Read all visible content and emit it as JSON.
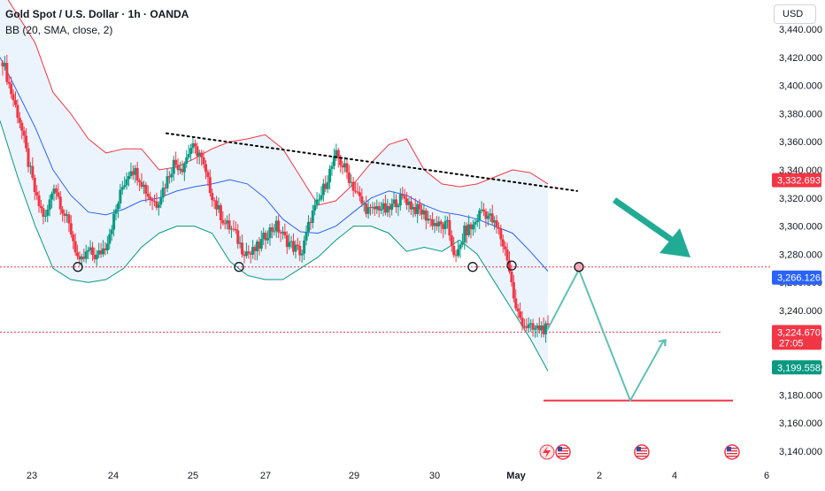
{
  "header": {
    "title": "Gold Spot / U.S. Dollar · 1h · OANDA",
    "indicator": "BB (20, SMA, close, 2)",
    "currency_button": "USD"
  },
  "colors": {
    "up": "#089981",
    "down": "#f23645",
    "bb_basis": "#2962ff",
    "bb_upper": "#f23645",
    "bb_lower": "#089981",
    "bb_fill": "#e3f0fb",
    "projection": "#5ec1b4",
    "arrow": "#22ab94",
    "support": "#f23645",
    "trendline": "#000000"
  },
  "price_badges": {
    "upper": "3,332.693",
    "level": "3,266.126",
    "last": "3,224.670",
    "countdown": "27:05",
    "lower": "3,199.558"
  },
  "chart_data": {
    "type": "candlestick",
    "title": "Gold Spot / U.S. Dollar · 1h · OANDA",
    "x_tick_labels": [
      "23",
      "24",
      "25",
      "27",
      "29",
      "30",
      "May",
      "2",
      "4",
      "6"
    ],
    "y_tick_labels": [
      "3,440.000",
      "3,420.000",
      "3,400.000",
      "3,380.000",
      "3,360.000",
      "3,340.000",
      "3,320.000",
      "3,300.000",
      "3,280.000",
      "3,260.000",
      "3,240.000",
      "3,220.000",
      "3,200.000",
      "3,180.000",
      "3,160.000",
      "3,140.000"
    ],
    "y_range": [
      3135,
      3445
    ],
    "close_path": [
      3418,
      3395,
      3375,
      3345,
      3318,
      3305,
      3330,
      3312,
      3296,
      3272,
      3282,
      3278,
      3286,
      3306,
      3328,
      3342,
      3335,
      3322,
      3316,
      3330,
      3345,
      3342,
      3356,
      3352,
      3331,
      3314,
      3302,
      3296,
      3284,
      3280,
      3286,
      3296,
      3300,
      3291,
      3285,
      3281,
      3306,
      3318,
      3335,
      3350,
      3341,
      3328,
      3316,
      3310,
      3314,
      3310,
      3318,
      3320,
      3313,
      3310,
      3304,
      3300,
      3300,
      3276,
      3296,
      3300,
      3312,
      3306,
      3296,
      3278,
      3240,
      3230,
      3226,
      3228,
      3225
    ],
    "bollinger": {
      "params": "BB (20, SMA, close, 2)",
      "upper": [
        3470,
        3450,
        3430,
        3395,
        3380,
        3362,
        3352,
        3355,
        3355,
        3340,
        3342,
        3348,
        3355,
        3360,
        3362,
        3365,
        3355,
        3335,
        3315,
        3318,
        3330,
        3345,
        3358,
        3362,
        3340,
        3330,
        3328,
        3330,
        3335,
        3340,
        3338,
        3330
      ],
      "basis": [
        3420,
        3395,
        3370,
        3340,
        3322,
        3310,
        3308,
        3312,
        3318,
        3320,
        3325,
        3328,
        3330,
        3333,
        3330,
        3320,
        3305,
        3296,
        3295,
        3300,
        3310,
        3320,
        3325,
        3322,
        3315,
        3310,
        3308,
        3305,
        3300,
        3295,
        3282,
        3268
      ],
      "lower": [
        3375,
        3335,
        3300,
        3270,
        3262,
        3260,
        3262,
        3270,
        3285,
        3295,
        3300,
        3300,
        3295,
        3275,
        3265,
        3262,
        3262,
        3270,
        3278,
        3290,
        3300,
        3300,
        3295,
        3282,
        3285,
        3282,
        3290,
        3280,
        3260,
        3240,
        3220,
        3197
      ]
    },
    "support_level": 3271,
    "current_price": 3224.67,
    "band_upper_value": 3332.693,
    "band_lower_value": 3199.558,
    "projection_path": [
      3226,
      3269,
      3176,
      3219,
      3215
    ],
    "target_line": 3176,
    "trendline": [
      3366,
      3325
    ],
    "markers": {
      "touch_circles": 5,
      "event_icons": 3
    }
  }
}
